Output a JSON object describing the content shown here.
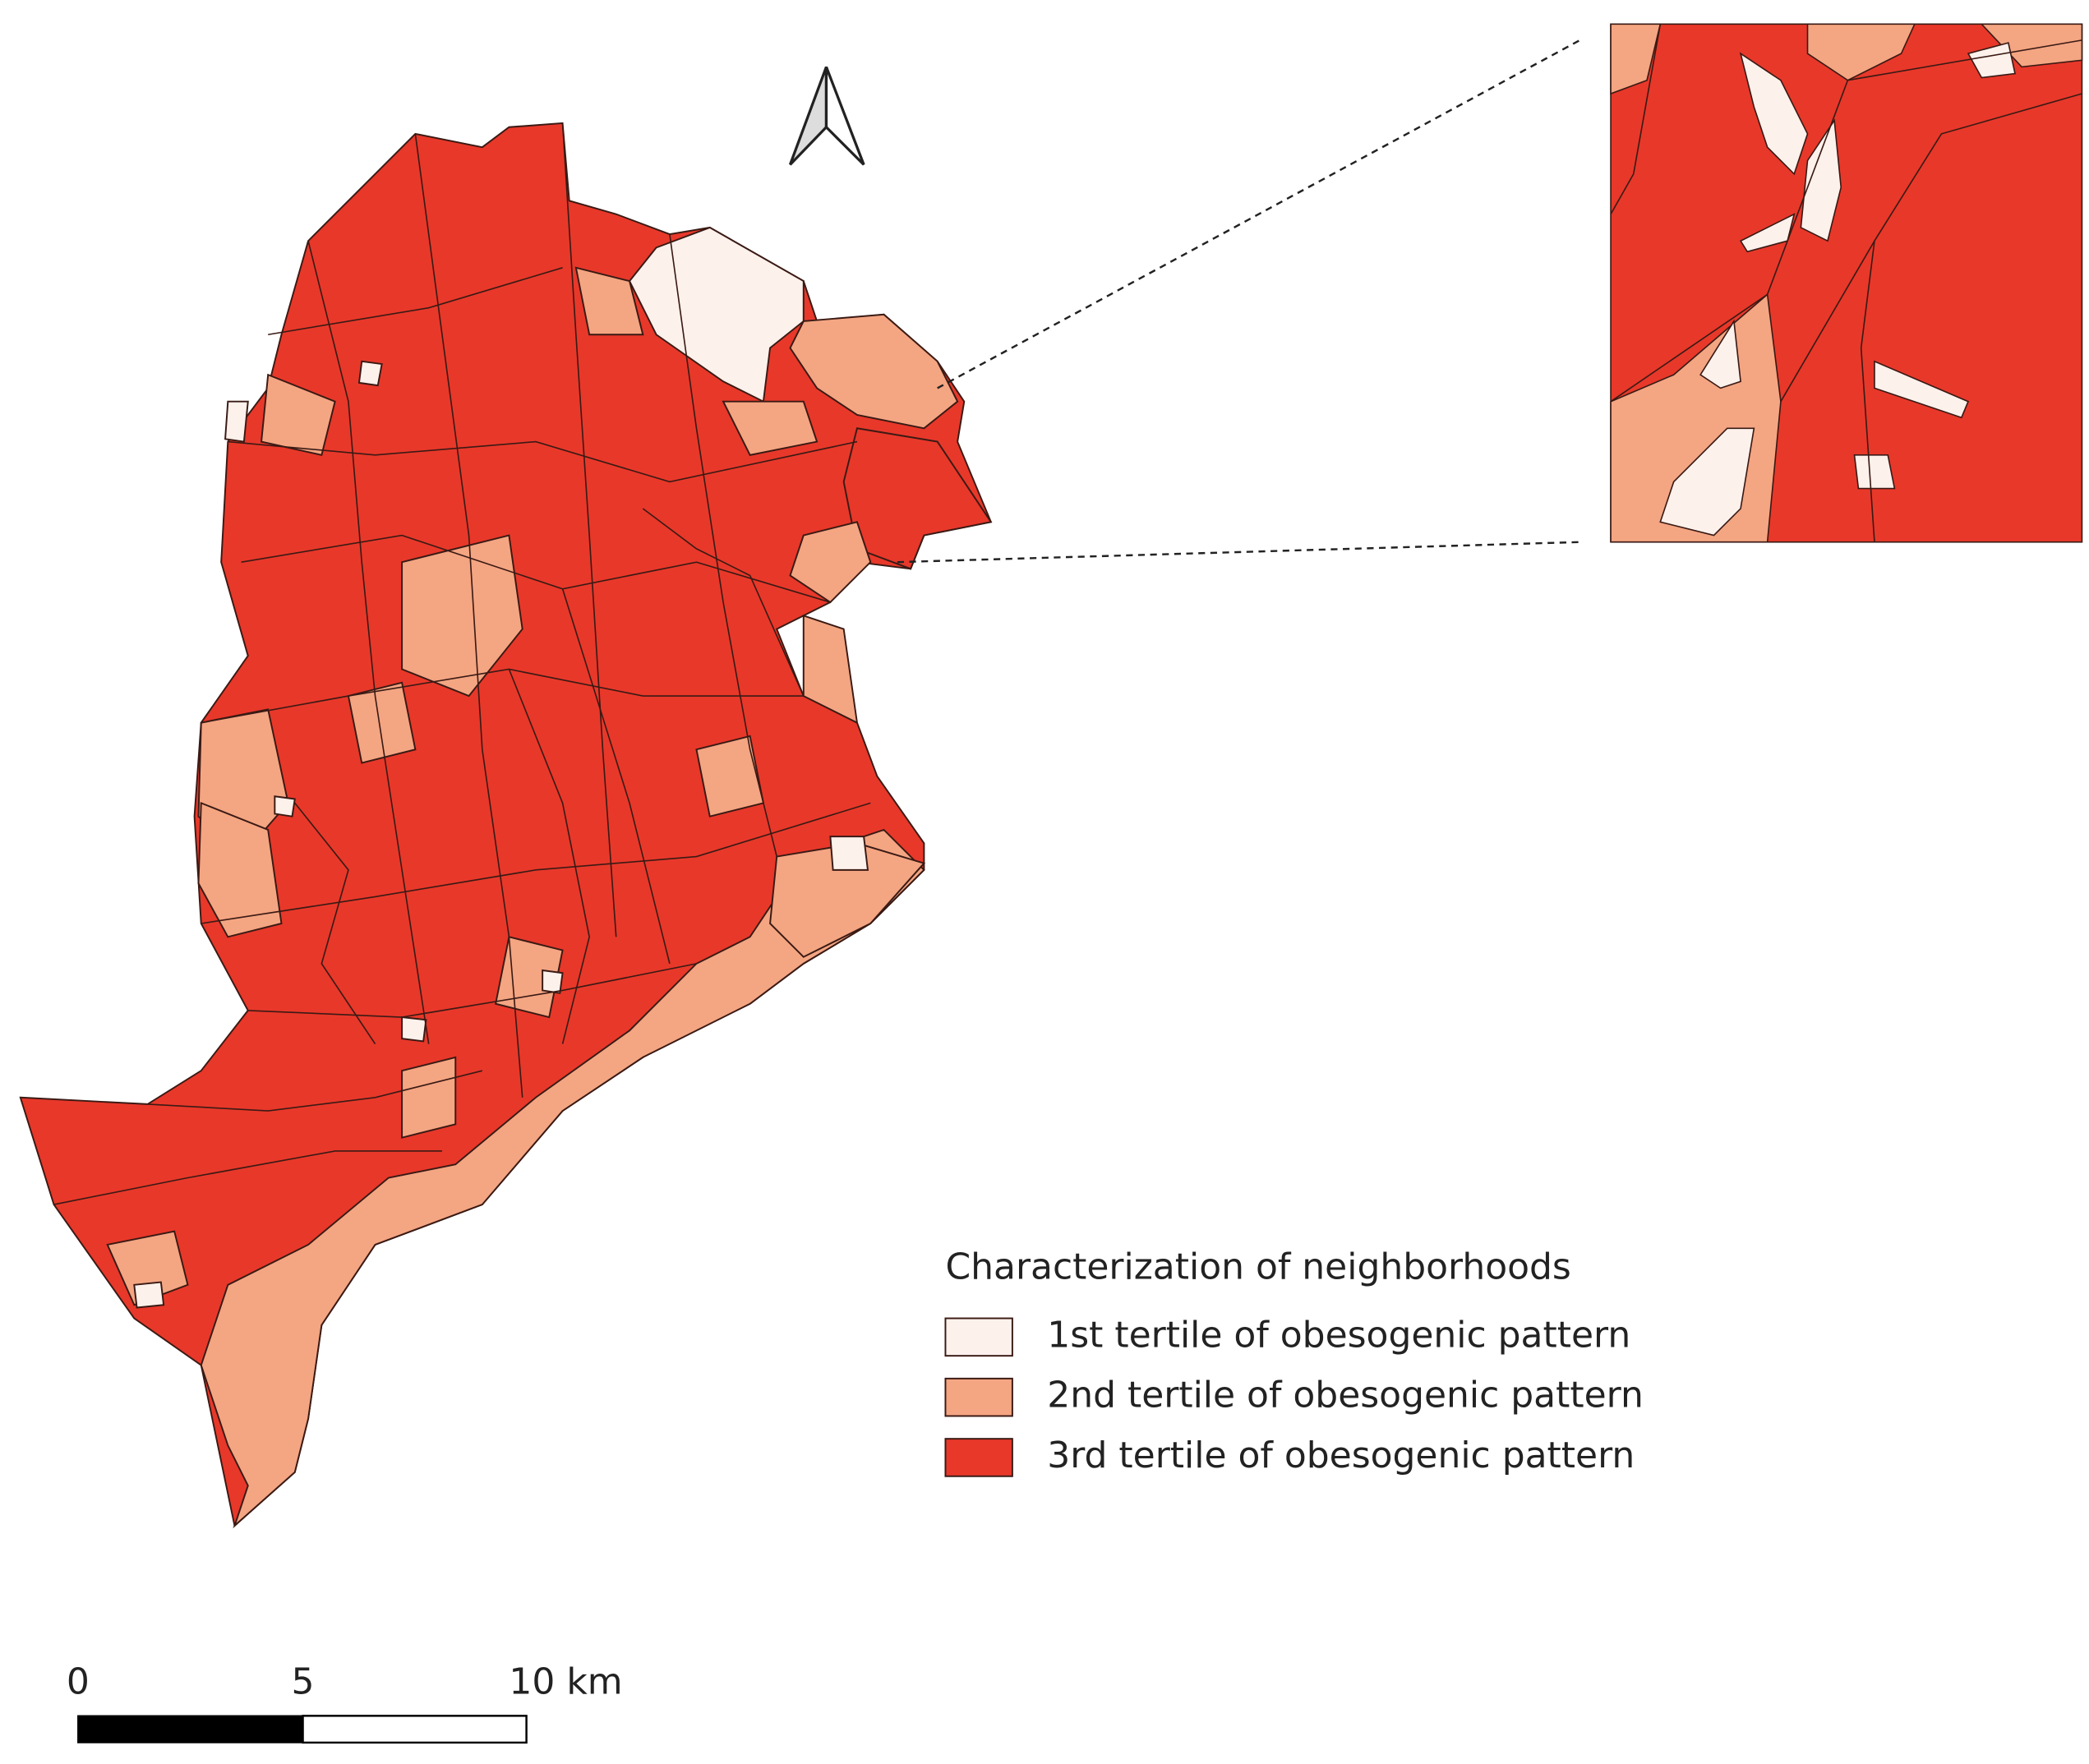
{
  "legend": {
    "title": "Characterization of neighborhoods",
    "items": [
      {
        "label": "1st tertile of obesogenic pattern",
        "color": "#fdf1ec"
      },
      {
        "label": "2nd tertile of obesogenic pattern",
        "color": "#f4a582"
      },
      {
        "label": "3rd tertile of obesogenic pattern",
        "color": "#e8382a"
      }
    ]
  },
  "scale_bar": {
    "labels": [
      "0",
      "5",
      "10 km"
    ]
  }
}
